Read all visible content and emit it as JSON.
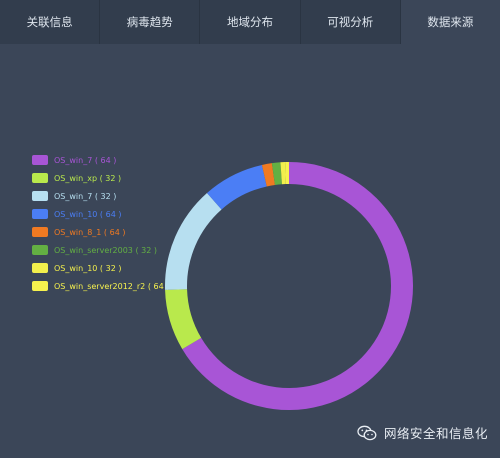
{
  "tabs": [
    {
      "label": "关联信息",
      "active": false
    },
    {
      "label": "病毒趋势",
      "active": false
    },
    {
      "label": "地域分布",
      "active": false
    },
    {
      "label": "可视分析",
      "active": false
    },
    {
      "label": "数据来源",
      "active": true
    }
  ],
  "legend": [
    {
      "label": "OS_win_7 ( 64 )",
      "color": "#a855d6"
    },
    {
      "label": "OS_win_xp ( 32 )",
      "color": "#b9e94c"
    },
    {
      "label": "OS_win_7 ( 32 )",
      "color": "#b7dff0"
    },
    {
      "label": "OS_win_10 ( 64 )",
      "color": "#4b7ef5"
    },
    {
      "label": "OS_win_8_1 ( 64 )",
      "color": "#f07a22"
    },
    {
      "label": "OS_win_server2003 ( 32 )",
      "color": "#63b043"
    },
    {
      "label": "OS_win_10 ( 32 )",
      "color": "#f2ef4c"
    },
    {
      "label": "OS_win_server2012_r2 ( 64 )",
      "color": "#f7f24e"
    }
  ],
  "chart_data": {
    "type": "pie",
    "style": "donut",
    "categories": [
      "OS_win_7 ( 64 )",
      "OS_win_xp ( 32 )",
      "OS_win_7 ( 32 )",
      "OS_win_10 ( 64 )",
      "OS_win_8_1 ( 64 )",
      "OS_win_server2003 ( 32 )",
      "OS_win_10 ( 32 )",
      "OS_win_server2012_r2 ( 64 )"
    ],
    "values": [
      66.5,
      8.0,
      14.0,
      8.0,
      1.3,
      1.1,
      0.6,
      0.5
    ],
    "colors": [
      "#a855d6",
      "#b9e94c",
      "#b7dff0",
      "#4b7ef5",
      "#f07a22",
      "#63b043",
      "#f2ef4c",
      "#f7f24e"
    ],
    "title": "",
    "legend_position": "left"
  },
  "watermark": {
    "text": "网络安全和信息化",
    "icon": "wechat-icon"
  }
}
